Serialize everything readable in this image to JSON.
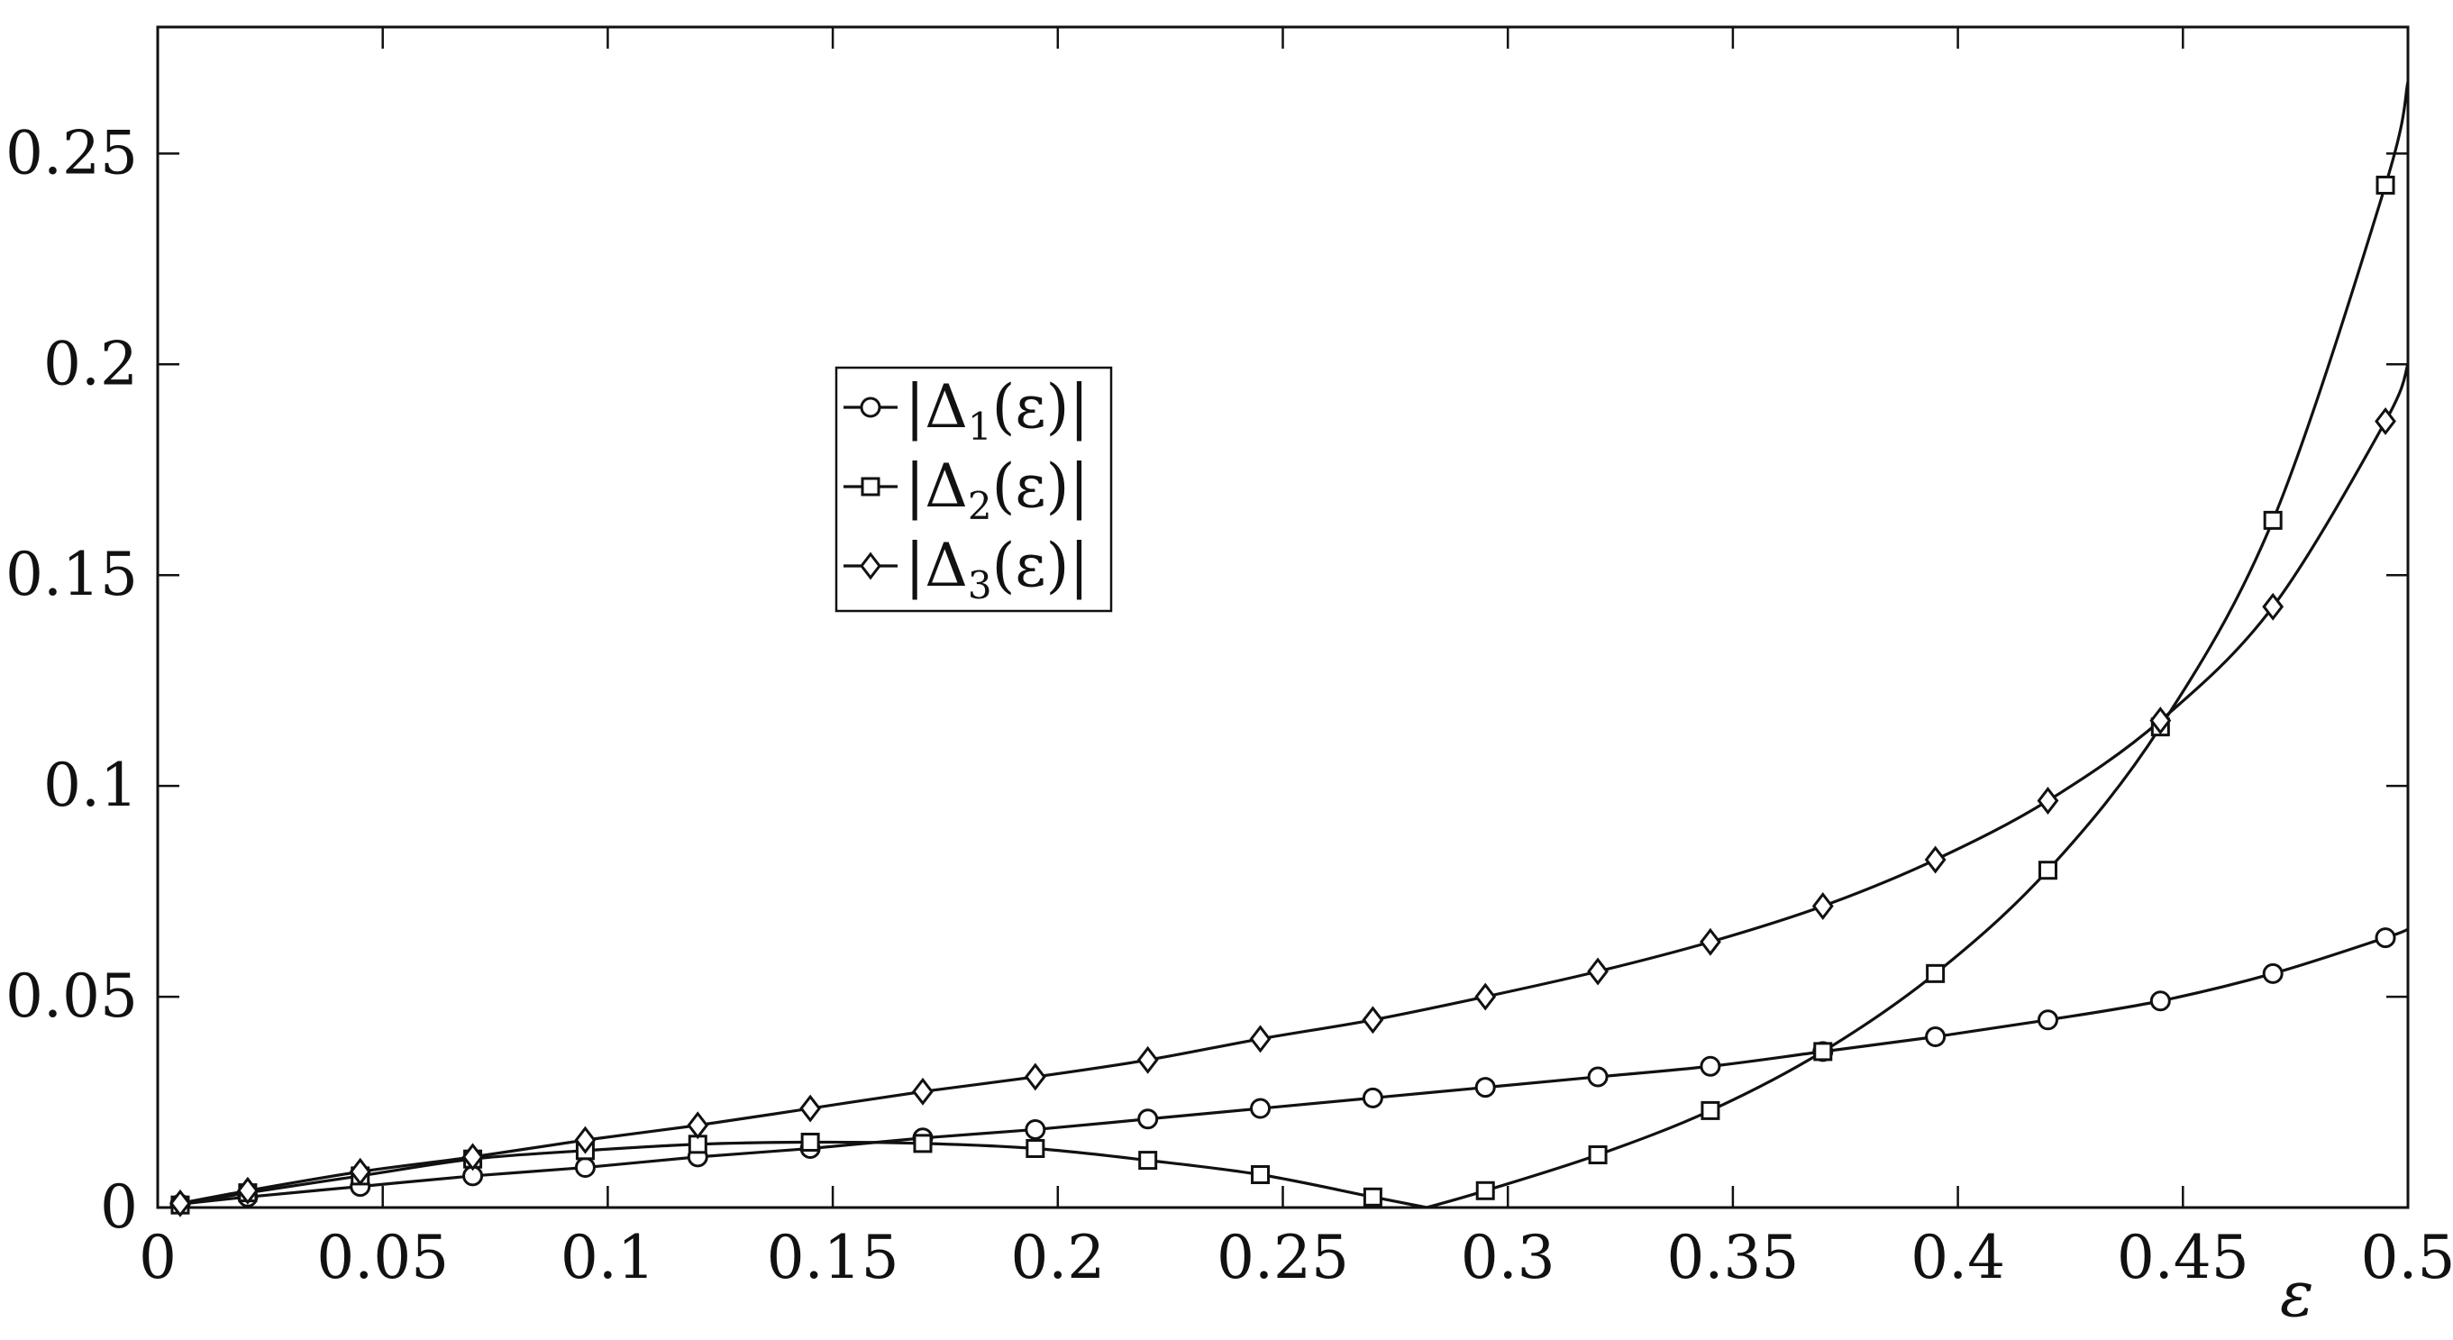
{
  "chart_data": {
    "type": "line",
    "title": "",
    "xlabel": "ε",
    "ylabel": "",
    "xlim": [
      0,
      0.5
    ],
    "ylim": [
      0,
      0.28
    ],
    "x_ticks": [
      "0",
      "0.05",
      "0.1",
      "0.15",
      "0.2",
      "0.25",
      "0.3",
      "0.35",
      "0.4",
      "0.45",
      "0.5"
    ],
    "y_ticks": [
      "0",
      "0.05",
      "0.1",
      "0.15",
      "0.2",
      "0.25"
    ],
    "grid": false,
    "legend_position": "center-left",
    "x": [
      0.005,
      0.02,
      0.045,
      0.07,
      0.095,
      0.12,
      0.145,
      0.17,
      0.195,
      0.22,
      0.245,
      0.27,
      0.295,
      0.32,
      0.345,
      0.37,
      0.395,
      0.42,
      0.445,
      0.47,
      0.495
    ],
    "series": [
      {
        "name": "|Δ1(ε)|",
        "legend_main": "|Δ",
        "legend_sub": "1",
        "legend_tail": "(ε)|",
        "marker": "circle",
        "values": [
          0.0008,
          0.0025,
          0.005,
          0.0075,
          0.0095,
          0.012,
          0.014,
          0.0165,
          0.0185,
          0.021,
          0.0235,
          0.026,
          0.0285,
          0.031,
          0.0335,
          0.037,
          0.0405,
          0.0445,
          0.049,
          0.0555,
          0.064
        ],
        "curve_end": [
          0.5,
          0.066
        ]
      },
      {
        "name": "|Δ2(ε)|",
        "legend_main": "|Δ",
        "legend_sub": "2",
        "legend_tail": "(ε)|",
        "marker": "square",
        "values": [
          0.0006,
          0.0035,
          0.0075,
          0.0115,
          0.0135,
          0.015,
          0.0155,
          0.0152,
          0.014,
          0.0112,
          0.0078,
          0.0025,
          0.004,
          0.0125,
          0.023,
          0.037,
          0.0555,
          0.08,
          0.114,
          0.163,
          0.2425
        ],
        "curve_end": [
          0.5,
          0.267
        ],
        "zero_crossing": 0.282
      },
      {
        "name": "|Δ3(ε)|",
        "legend_main": "|Δ",
        "legend_sub": "3",
        "legend_tail": "(ε)|",
        "marker": "diamond",
        "values": [
          0.001,
          0.004,
          0.0085,
          0.012,
          0.016,
          0.0195,
          0.0235,
          0.0275,
          0.031,
          0.035,
          0.04,
          0.0445,
          0.05,
          0.056,
          0.063,
          0.0715,
          0.0825,
          0.0965,
          0.1155,
          0.1425,
          0.1865
        ],
        "curve_end": [
          0.5,
          0.2
        ]
      }
    ]
  }
}
